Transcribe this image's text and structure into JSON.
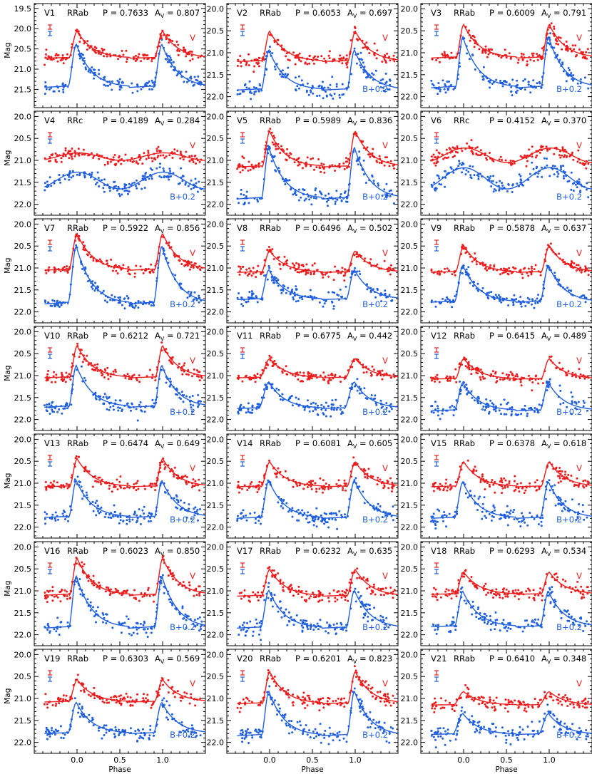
{
  "figure": {
    "xlabel": "Phase",
    "ylabel": "Mag",
    "band_v_label": "V",
    "band_b_label": "B+0.2",
    "colors": {
      "V": "#ee1c1c",
      "B": "#1f5fe0",
      "axes": "#000000"
    },
    "panel_header_format": "Vn  type  P = period  A_V = amplitude",
    "x_ticks": [
      "0.0",
      "0.5",
      "1.0"
    ]
  },
  "chart_data": [
    {
      "type": "scatter",
      "star": "V1",
      "class": "RRab",
      "P": "0.7633",
      "Av": "0.807",
      "ylim": [
        21.95,
        19.38
      ],
      "yticks": [
        "19.5",
        "20.0",
        "20.5",
        "21.0",
        "21.5"
      ],
      "v_base": 20.73,
      "b_base": 21.45,
      "v_peak": 20.07,
      "b_peak": 20.4,
      "rise": [
        -0.1,
        0.0
      ],
      "noise": 0.06,
      "bandV_label_y": 20.35,
      "bandB_label_y": null,
      "show_ylabel": true,
      "show_xlabel": false
    },
    {
      "type": "scatter",
      "star": "V2",
      "class": "RRab",
      "P": "0.6053",
      "Av": "0.697",
      "ylim": [
        22.25,
        19.88
      ],
      "yticks": [
        "20.0",
        "20.5",
        "21.0",
        "21.5",
        "22.0"
      ],
      "v_base": 21.2,
      "b_base": 21.85,
      "v_peak": 20.52,
      "b_peak": 20.95,
      "rise": [
        -0.09,
        0.0
      ],
      "noise": 0.08,
      "bandV_label_y": 20.58,
      "bandB_label_y": 21.75,
      "show_ylabel": false,
      "show_xlabel": false
    },
    {
      "type": "scatter",
      "star": "V3",
      "class": "RRab",
      "P": "0.6009",
      "Av": "0.791",
      "ylim": [
        22.25,
        19.88
      ],
      "yticks": [
        "20.0",
        "20.5",
        "21.0",
        "21.5",
        "22.0"
      ],
      "v_base": 21.12,
      "b_base": 21.8,
      "v_peak": 20.37,
      "b_peak": 20.65,
      "rise": [
        -0.09,
        0.0
      ],
      "noise": 0.07,
      "bandV_label_y": 20.58,
      "bandB_label_y": 21.75,
      "show_ylabel": false,
      "show_xlabel": false
    },
    {
      "type": "scatter",
      "star": "V4",
      "class": "RRc",
      "P": "0.4189",
      "Av": "0.284",
      "ylim": [
        22.25,
        19.88
      ],
      "yticks": [
        "20.0",
        "20.5",
        "21.0",
        "21.5",
        "22.0"
      ],
      "v_base": 21.0,
      "b_base": 21.65,
      "v_peak": 20.83,
      "b_peak": 21.27,
      "rise": [
        -0.2,
        0.0
      ],
      "noise": 0.07,
      "bandV_label_y": 20.85,
      "bandB_label_y": 21.75,
      "show_ylabel": true,
      "show_xlabel": false
    },
    {
      "type": "scatter",
      "star": "V5",
      "class": "RRab",
      "P": "0.5989",
      "Av": "0.836",
      "ylim": [
        22.25,
        19.88
      ],
      "yticks": [
        "20.0",
        "20.5",
        "21.0",
        "21.5",
        "22.0"
      ],
      "v_base": 21.15,
      "b_base": 21.88,
      "v_peak": 20.35,
      "b_peak": 20.72,
      "rise": [
        -0.09,
        0.0
      ],
      "noise": 0.07,
      "bandV_label_y": 20.58,
      "bandB_label_y": 21.75,
      "show_ylabel": false,
      "show_xlabel": false
    },
    {
      "type": "scatter",
      "star": "V6",
      "class": "RRc",
      "P": "0.4152",
      "Av": "0.370",
      "ylim": [
        22.25,
        19.88
      ],
      "yticks": [
        "20.0",
        "20.5",
        "21.0",
        "21.5",
        "22.0"
      ],
      "v_base": 21.05,
      "b_base": 21.65,
      "v_peak": 20.72,
      "b_peak": 21.17,
      "rise": [
        -0.2,
        0.0
      ],
      "noise": 0.08,
      "bandV_label_y": 20.58,
      "bandB_label_y": 21.75,
      "show_ylabel": false,
      "show_xlabel": false
    },
    {
      "type": "scatter",
      "star": "V7",
      "class": "RRab",
      "P": "0.5922",
      "Av": "0.856",
      "ylim": [
        22.25,
        19.88
      ],
      "yticks": [
        "20.0",
        "20.5",
        "21.0",
        "21.5",
        "22.0"
      ],
      "v_base": 21.05,
      "b_base": 21.82,
      "v_peak": 20.23,
      "b_peak": 20.52,
      "rise": [
        -0.1,
        0.0
      ],
      "noise": 0.05,
      "bandV_label_y": 20.58,
      "bandB_label_y": 21.75,
      "show_ylabel": true,
      "show_xlabel": false
    },
    {
      "type": "scatter",
      "star": "V8",
      "class": "RRab",
      "P": "0.6496",
      "Av": "0.502",
      "ylim": [
        22.25,
        19.88
      ],
      "yticks": [
        "20.0",
        "20.5",
        "21.0",
        "21.5",
        "22.0"
      ],
      "v_base": 21.1,
      "b_base": 21.72,
      "v_peak": 20.62,
      "b_peak": 21.05,
      "rise": [
        -0.1,
        0.0
      ],
      "noise": 0.07,
      "bandV_label_y": 20.58,
      "bandB_label_y": 21.75,
      "show_ylabel": false,
      "show_xlabel": false
    },
    {
      "type": "scatter",
      "star": "V9",
      "class": "RRab",
      "P": "0.5878",
      "Av": "0.637",
      "ylim": [
        22.25,
        19.88
      ],
      "yticks": [
        "20.0",
        "20.5",
        "21.0",
        "21.5",
        "22.0"
      ],
      "v_base": 21.1,
      "b_base": 21.78,
      "v_peak": 20.5,
      "b_peak": 20.95,
      "rise": [
        -0.1,
        0.0
      ],
      "noise": 0.05,
      "bandV_label_y": 20.58,
      "bandB_label_y": 21.75,
      "show_ylabel": false,
      "show_xlabel": false
    },
    {
      "type": "scatter",
      "star": "V10",
      "class": "RRab",
      "P": "0.6212",
      "Av": "0.721",
      "ylim": [
        22.25,
        19.88
      ],
      "yticks": [
        "20.0",
        "20.5",
        "21.0",
        "21.5",
        "22.0"
      ],
      "v_base": 21.05,
      "b_base": 21.72,
      "v_peak": 20.33,
      "b_peak": 20.78,
      "rise": [
        -0.09,
        0.0
      ],
      "noise": 0.07,
      "bandV_label_y": 20.58,
      "bandB_label_y": 21.75,
      "show_ylabel": true,
      "show_xlabel": false
    },
    {
      "type": "scatter",
      "star": "V11",
      "class": "RRab",
      "P": "0.6775",
      "Av": "0.442",
      "ylim": [
        22.25,
        19.88
      ],
      "yticks": [
        "20.0",
        "20.5",
        "21.0",
        "21.5",
        "22.0"
      ],
      "v_base": 21.05,
      "b_base": 21.75,
      "v_peak": 20.62,
      "b_peak": 21.15,
      "rise": [
        -0.12,
        0.0
      ],
      "noise": 0.06,
      "bandV_label_y": 20.58,
      "bandB_label_y": 21.75,
      "show_ylabel": false,
      "show_xlabel": false
    },
    {
      "type": "scatter",
      "star": "V12",
      "class": "RRab",
      "P": "0.6415",
      "Av": "0.489",
      "ylim": [
        22.25,
        19.88
      ],
      "yticks": [
        "20.0",
        "20.5",
        "21.0",
        "21.5",
        "22.0"
      ],
      "v_base": 21.08,
      "b_base": 21.8,
      "v_peak": 20.62,
      "b_peak": 21.17,
      "rise": [
        -0.1,
        0.0
      ],
      "noise": 0.07,
      "bandV_label_y": 20.58,
      "bandB_label_y": 21.75,
      "show_ylabel": false,
      "show_xlabel": false
    },
    {
      "type": "scatter",
      "star": "V13",
      "class": "RRab",
      "P": "0.6474",
      "Av": "0.649",
      "ylim": [
        22.25,
        19.88
      ],
      "yticks": [
        "20.0",
        "20.5",
        "21.0",
        "21.5",
        "22.0"
      ],
      "v_base": 21.08,
      "b_base": 21.78,
      "v_peak": 20.45,
      "b_peak": 20.95,
      "rise": [
        -0.09,
        0.0
      ],
      "noise": 0.07,
      "bandV_label_y": 20.58,
      "bandB_label_y": 21.75,
      "show_ylabel": true,
      "show_xlabel": false
    },
    {
      "type": "scatter",
      "star": "V14",
      "class": "RRab",
      "P": "0.6081",
      "Av": "0.605",
      "ylim": [
        22.25,
        19.88
      ],
      "yticks": [
        "20.0",
        "20.5",
        "21.0",
        "21.5",
        "22.0"
      ],
      "v_base": 21.08,
      "b_base": 21.8,
      "v_peak": 20.52,
      "b_peak": 20.95,
      "rise": [
        -0.1,
        0.0
      ],
      "noise": 0.07,
      "bandV_label_y": 20.58,
      "bandB_label_y": 21.75,
      "show_ylabel": false,
      "show_xlabel": false
    },
    {
      "type": "scatter",
      "star": "V15",
      "class": "RRab",
      "P": "0.6378",
      "Av": "0.618",
      "ylim": [
        22.25,
        19.88
      ],
      "yticks": [
        "20.0",
        "20.5",
        "21.0",
        "21.5",
        "22.0"
      ],
      "v_base": 21.08,
      "b_base": 21.8,
      "v_peak": 20.52,
      "b_peak": 20.98,
      "rise": [
        -0.1,
        0.0
      ],
      "noise": 0.08,
      "bandV_label_y": 20.58,
      "bandB_label_y": 21.75,
      "show_ylabel": false,
      "show_xlabel": false
    },
    {
      "type": "scatter",
      "star": "V16",
      "class": "RRab",
      "P": "0.6023",
      "Av": "0.850",
      "ylim": [
        22.25,
        19.88
      ],
      "yticks": [
        "20.0",
        "20.5",
        "21.0",
        "21.5",
        "22.0"
      ],
      "v_base": 21.1,
      "b_base": 21.85,
      "v_peak": 20.27,
      "b_peak": 20.68,
      "rise": [
        -0.09,
        0.0
      ],
      "noise": 0.07,
      "bandV_label_y": 20.58,
      "bandB_label_y": 21.75,
      "show_ylabel": true,
      "show_xlabel": false
    },
    {
      "type": "scatter",
      "star": "V17",
      "class": "RRab",
      "P": "0.6232",
      "Av": "0.635",
      "ylim": [
        22.25,
        19.88
      ],
      "yticks": [
        "20.0",
        "20.5",
        "21.0",
        "21.5",
        "22.0"
      ],
      "v_base": 21.12,
      "b_base": 21.85,
      "v_peak": 20.52,
      "b_peak": 21.0,
      "rise": [
        -0.1,
        0.0
      ],
      "noise": 0.08,
      "bandV_label_y": 20.58,
      "bandB_label_y": 21.75,
      "show_ylabel": false,
      "show_xlabel": false
    },
    {
      "type": "scatter",
      "star": "V18",
      "class": "RRab",
      "P": "0.6293",
      "Av": "0.534",
      "ylim": [
        22.25,
        19.88
      ],
      "yticks": [
        "20.0",
        "20.5",
        "21.0",
        "21.5",
        "22.0"
      ],
      "v_base": 21.08,
      "b_base": 21.82,
      "v_peak": 20.58,
      "b_peak": 21.02,
      "rise": [
        -0.1,
        0.0
      ],
      "noise": 0.07,
      "bandV_label_y": 20.58,
      "bandB_label_y": 21.75,
      "show_ylabel": false,
      "show_xlabel": false
    },
    {
      "type": "scatter",
      "star": "V19",
      "class": "RRab",
      "P": "0.6303",
      "Av": "0.569",
      "ylim": [
        22.25,
        19.88
      ],
      "yticks": [
        "20.0",
        "20.5",
        "21.0",
        "21.5",
        "22.0"
      ],
      "v_base": 21.08,
      "b_base": 21.8,
      "v_peak": 20.58,
      "b_peak": 21.1,
      "rise": [
        -0.1,
        0.0
      ],
      "noise": 0.07,
      "bandV_label_y": 20.58,
      "bandB_label_y": 21.75,
      "show_ylabel": true,
      "show_xlabel": true
    },
    {
      "type": "scatter",
      "star": "V20",
      "class": "RRab",
      "P": "0.6201",
      "Av": "0.823",
      "ylim": [
        22.25,
        19.88
      ],
      "yticks": [
        "20.0",
        "20.5",
        "21.0",
        "21.5",
        "22.0"
      ],
      "v_base": 21.12,
      "b_base": 21.85,
      "v_peak": 20.4,
      "b_peak": 20.85,
      "rise": [
        -0.09,
        0.0
      ],
      "noise": 0.08,
      "bandV_label_y": 20.58,
      "bandB_label_y": 21.75,
      "show_ylabel": false,
      "show_xlabel": true
    },
    {
      "type": "scatter",
      "star": "V21",
      "class": "RRab",
      "P": "0.6410",
      "Av": "0.348",
      "ylim": [
        22.25,
        19.88
      ],
      "yticks": [
        "20.0",
        "20.5",
        "21.0",
        "21.5",
        "22.0"
      ],
      "v_base": 21.15,
      "b_base": 21.82,
      "v_peak": 20.85,
      "b_peak": 21.35,
      "rise": [
        -0.12,
        0.0
      ],
      "noise": 0.08,
      "bandV_label_y": 20.85,
      "bandB_label_y": 21.75,
      "show_ylabel": false,
      "show_xlabel": true
    }
  ]
}
